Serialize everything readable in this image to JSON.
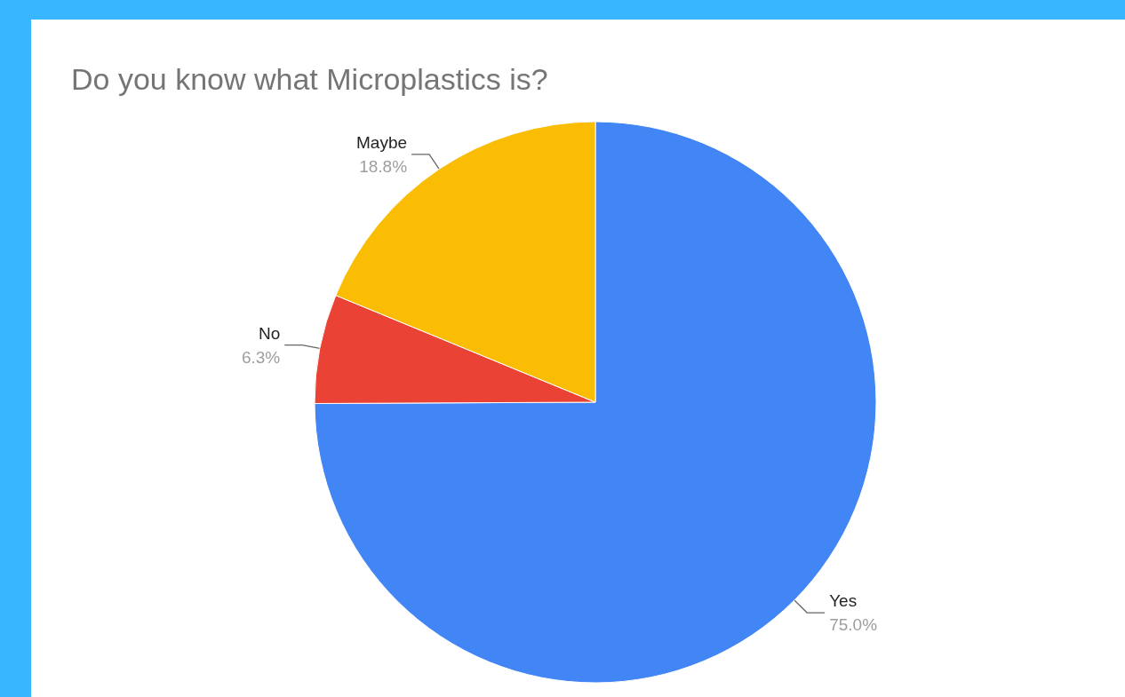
{
  "chart_data": {
    "type": "pie",
    "title": "Do you know what Microplastics is?",
    "categories": [
      "Yes",
      "No",
      "Maybe"
    ],
    "values": [
      75.0,
      6.3,
      18.8
    ],
    "colors": [
      "#4285f4",
      "#ea4335",
      "#fbbc04"
    ],
    "value_labels": [
      "75.0%",
      "6.3%",
      "18.8%"
    ],
    "legend": false
  }
}
